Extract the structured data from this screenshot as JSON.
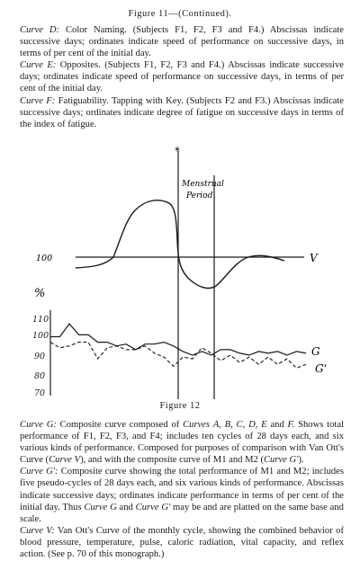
{
  "figure_title": "Figure 11—(Continued).",
  "top_paragraphs": [
    {
      "label": "Curve D:",
      "text": " Color Naming. (Subjects F1, F2, F3 and F4.) Abscissas indicate successive days; ordinates indicate speed of performance on successive days, in terms of per cent of the initial day."
    },
    {
      "label": "Curve E:",
      "text": " Opposites. (Subjects F1, F2, F3 and F4.) Abscissas indicate successive days; ordinates indicate speed of performance on successive days, in terms of per cent of the initial day."
    },
    {
      "label": "Curve F:",
      "text": " Fatiguability. Tapping with Key. (Subjects F2 and F3.) Abscissas indicate successive days; ordinates indicate degree of fatigue on successive days in terms of the index of fatigue."
    }
  ],
  "chart_labels": {
    "star": "*",
    "menstrual_1": "Menstrual",
    "menstrual_2": "Period",
    "v100": "100",
    "V": "V",
    "pct": "%",
    "t110": "110",
    "t100": "100",
    "t90": "90",
    "t80": "80",
    "t70": "70",
    "G": "G",
    "Gprime": "G'"
  },
  "chart_data": {
    "type": "line",
    "title": "",
    "charts": [
      {
        "name": "V",
        "note": "Van Ott's Curve; horizontal reference at 100",
        "series": [
          {
            "name": "V",
            "values": []
          }
        ]
      },
      {
        "yaxis_label": "%",
        "ylim": [
          70,
          110
        ],
        "yticks": [
          110,
          100,
          90,
          80,
          70
        ],
        "x": [
          1,
          2,
          3,
          4,
          5,
          6,
          7,
          8,
          9,
          10,
          11,
          12,
          13,
          14,
          15,
          16,
          17,
          18,
          19,
          20,
          21,
          22,
          23,
          24,
          25,
          26,
          27,
          28
        ],
        "series": [
          {
            "name": "G",
            "values": [
              100,
              100,
              107,
              101,
              101,
              97,
              97,
              95,
              96,
              93,
              96,
              96,
              97,
              95,
              92,
              90,
              92,
              90,
              93,
              93,
              91,
              90,
              92,
              91,
              92,
              90,
              92,
              91
            ]
          },
          {
            "name": "G'",
            "values": [
              97,
              94,
              95,
              97,
              97,
              88,
              94,
              95,
              93,
              93,
              95,
              91,
              89,
              84,
              89,
              88,
              94,
              91,
              87,
              90,
              86,
              89,
              85,
              89,
              85,
              88,
              83,
              85
            ]
          }
        ]
      }
    ]
  },
  "figure_caption": "Figure 12",
  "bottom_paragraphs": [
    {
      "label": "Curve G:",
      "text_parts": [
        " Composite curve composed of ",
        "Curves A, B, C, D, E",
        " and ",
        "F.",
        " Shows total performance of F1, F2, F3, and F4; includes ten cycles of 28 days each, and six various kinds of performance. Composed for purposes of comparison with Van Ott's Curve (",
        "Curve V",
        "), and with the composite curve of M1 and M2 (",
        "Curve G'",
        ")."
      ]
    },
    {
      "label": "Curve G':",
      "text_parts": [
        " Composite curve showing the total performance of M1 and M2; includes five pseudo-cycles of 28 days each, and six various kinds of performance. Abscissas indicate successive days; ordinates indicate performance in terms of per cent of the initial day. Thus ",
        "Curve G",
        " and ",
        "Curve G'",
        " may be and are platted on the same base and scale."
      ]
    },
    {
      "label": "Curve V:",
      "text_parts": [
        " Van Ott's Curve of the monthly cycle, showing the combined behavior of blood pressure, temperature, pulse, caloric radiation, vital capacity, and reflex action. (See p. 70 of this monograph.)"
      ]
    }
  ]
}
